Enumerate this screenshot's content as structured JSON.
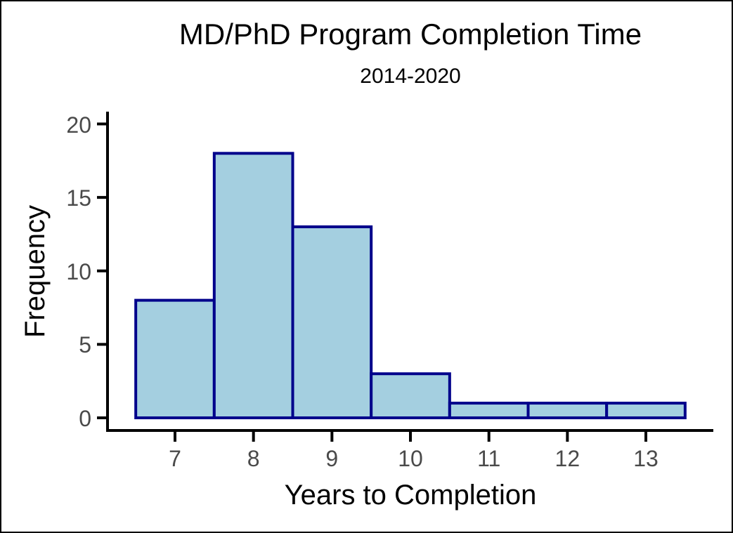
{
  "figure": {
    "title": "MD/PhD Program Completion Time",
    "subtitle": "2014-2020",
    "xlabel": "Years to Completion",
    "ylabel": "Frequency"
  },
  "chart_data": {
    "type": "bar",
    "subtype": "histogram",
    "title": "MD/PhD Program Completion Time",
    "subtitle": "2014-2020",
    "xlabel": "Years to Completion",
    "ylabel": "Frequency",
    "bin_centers": [
      7,
      8,
      9,
      10,
      11,
      12,
      13
    ],
    "bin_width": 1,
    "frequencies": [
      8,
      18,
      13,
      3,
      1,
      1,
      1
    ],
    "x_ticks": [
      7,
      8,
      9,
      10,
      11,
      12,
      13
    ],
    "y_ticks": [
      0,
      5,
      10,
      15,
      20
    ],
    "xlim": [
      6.5,
      13.5
    ],
    "ylim": [
      0,
      20
    ],
    "grid": false,
    "legend": "none",
    "colors": {
      "bar_fill": "#a4cfe0",
      "bar_border": "#00008b",
      "axis_line": "#000000",
      "tick_label": "#4a4a4a",
      "text": "#000000"
    }
  }
}
